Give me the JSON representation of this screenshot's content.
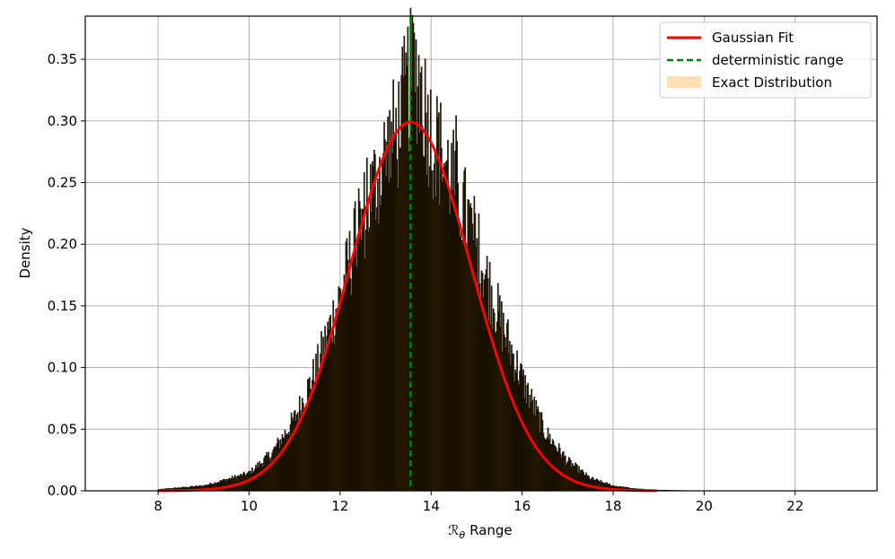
{
  "chart_data": {
    "type": "histogram",
    "xlabel_symbol": "ℛ",
    "xlabel_subscript": "θ",
    "xlabel_text": "Range",
    "ylabel": "Density",
    "xlim": [
      6.4,
      23.8
    ],
    "ylim": [
      0,
      0.385
    ],
    "xticks": [
      8,
      10,
      12,
      14,
      16,
      18,
      20,
      22
    ],
    "yticks": [
      0.0,
      0.05,
      0.1,
      0.15,
      0.2,
      0.25,
      0.3,
      0.35
    ],
    "grid": true,
    "legend_position": "top-right",
    "bin_width": 0.02,
    "data_range": [
      8.0,
      19.7
    ],
    "series": [
      {
        "name": "Gaussian Fit",
        "kind": "line",
        "color": "#ff0000",
        "mean": 13.55,
        "std": 1.335,
        "peak_density": 0.299
      },
      {
        "name": "deterministic range",
        "kind": "vline",
        "color": "#008000",
        "x": 13.55
      },
      {
        "name": "Exact Distribution",
        "kind": "histogram",
        "color": "#ffe0b2",
        "fill_color": "#5a3a00",
        "edge_color": "#000000"
      }
    ],
    "envelope": {
      "x": [
        8.0,
        9.0,
        10.0,
        10.5,
        11.0,
        11.5,
        12.0,
        12.5,
        13.0,
        13.3,
        13.5,
        13.7,
        14.0,
        14.5,
        15.0,
        15.5,
        16.0,
        16.5,
        17.0,
        17.5,
        18.0,
        18.5,
        19.0,
        19.7
      ],
      "y": [
        0.001,
        0.004,
        0.014,
        0.03,
        0.058,
        0.1,
        0.158,
        0.222,
        0.272,
        0.295,
        0.33,
        0.34,
        0.29,
        0.25,
        0.2,
        0.14,
        0.09,
        0.048,
        0.024,
        0.01,
        0.004,
        0.0015,
        0.0005,
        0.0001
      ]
    }
  }
}
